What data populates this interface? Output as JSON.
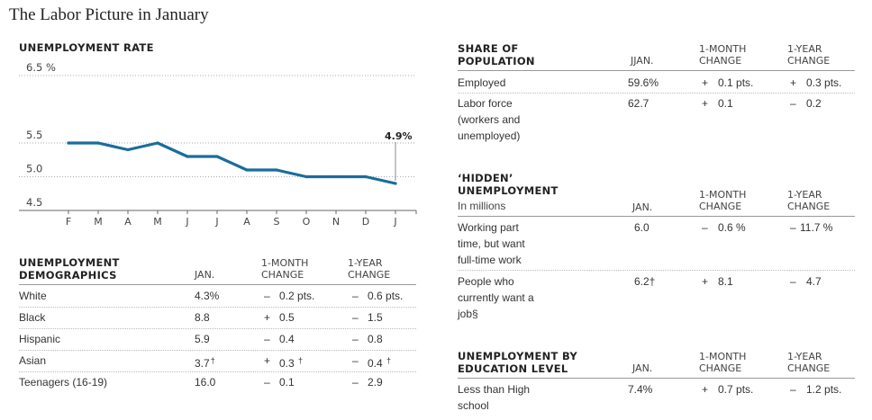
{
  "title": "The Labor Picture in January",
  "chart_data": {
    "type": "line",
    "title": "UNEMPLOYMENT RATE",
    "categories": [
      "F",
      "M",
      "A",
      "M",
      "J",
      "J",
      "A",
      "S",
      "O",
      "N",
      "D",
      "J"
    ],
    "series": [
      {
        "values": [
          5.5,
          5.5,
          5.4,
          5.5,
          5.3,
          5.3,
          5.1,
          5.1,
          5.0,
          5.0,
          5.0,
          4.9
        ]
      }
    ],
    "ylim": [
      4.5,
      6.5
    ],
    "yticks": [
      "6.5 %",
      "5.5",
      "5.0",
      "4.5"
    ],
    "yticks_values": [
      6.5,
      5.5,
      5.0,
      4.5
    ],
    "annotation": "4.9%",
    "line_color": "#1a6d9c",
    "grid": true
  },
  "demographics": {
    "title": "UNEMPLOYMENT DEMOGRAPHICS",
    "headers": [
      "JAN.",
      "1-MONTH CHANGE",
      "1-YEAR CHANGE"
    ],
    "rows": [
      {
        "label": "White",
        "jan": "4.3%",
        "m_sign": "–",
        "m_val": "0.2 pts.",
        "y_sign": "–",
        "y_val": "0.6 pts."
      },
      {
        "label": "Black",
        "jan": "8.8",
        "m_sign": "+",
        "m_val": "0.5",
        "y_sign": "–",
        "y_val": "1.5"
      },
      {
        "label": "Hispanic",
        "jan": "5.9",
        "m_sign": "–",
        "m_val": "0.4",
        "y_sign": "–",
        "y_val": "0.8"
      },
      {
        "label": "Asian",
        "jan": "3.7",
        "m_sign": "+",
        "m_val": "0.3",
        "y_sign": "–",
        "y_val": "0.4"
      },
      {
        "label": "Teenagers (16-19)",
        "jan": "16.0",
        "m_sign": "–",
        "m_val": "0.1",
        "y_sign": "–",
        "y_val": "2.9"
      }
    ],
    "dagger": "†"
  },
  "share": {
    "title": "SHARE OF POPULATION",
    "headers": [
      "JJAN.",
      "1-MONTH CHANGE",
      "1-YEAR CHANGE"
    ],
    "rows": [
      {
        "label": "Employed",
        "jan": "59.6%",
        "m_sign": "+",
        "m_val": "0.1 pts.",
        "y_sign": "+",
        "y_val": "0.3 pts."
      },
      {
        "label": "Labor force (workers and unemployed)",
        "jan": "62.7",
        "m_sign": "+",
        "m_val": "0.1",
        "y_sign": "–",
        "y_val": "0.2"
      }
    ]
  },
  "hidden": {
    "title": "‘HIDDEN’ UNEMPLOYMENT",
    "subtitle": "In millions",
    "headers": [
      "JAN.",
      "1-MONTH CHANGE",
      "1-YEAR CHANGE"
    ],
    "rows": [
      {
        "label": "Working part time, but want full-time work",
        "jan": "6.0",
        "m_sign": "–",
        "m_val": "0.6 %",
        "y_sign": "–",
        "y_val": "11.7 %"
      },
      {
        "label": "People who currently want a job§",
        "jan": "6.2†",
        "m_sign": "+",
        "m_val": "8.1",
        "y_sign": "–",
        "y_val": "4.7"
      }
    ]
  },
  "education": {
    "title": "UNEMPLOYMENT BY EDUCATION LEVEL",
    "headers": [
      "JAN.",
      "1-MONTH CHANGE",
      "1-YEAR CHANGE"
    ],
    "rows": [
      {
        "label": "Less than High school",
        "jan": "7.4%",
        "m_sign": "+",
        "m_val": "0.7 pts.",
        "y_sign": "–",
        "y_val": "1.2 pts."
      }
    ]
  }
}
